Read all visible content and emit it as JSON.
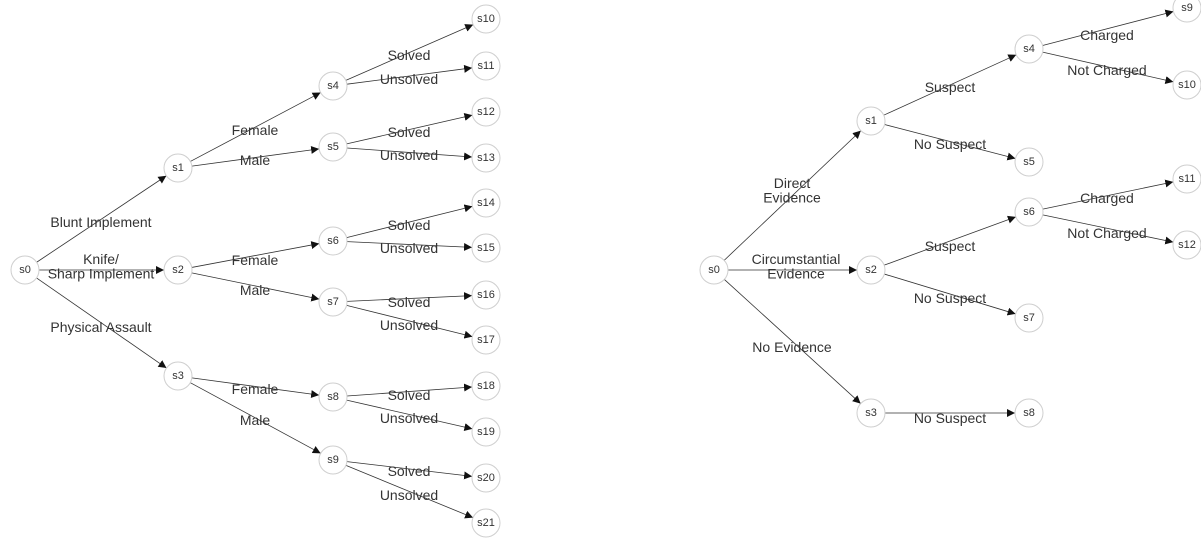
{
  "trees": [
    {
      "id": "left",
      "nodes": [
        "s0",
        "s1",
        "s2",
        "s3",
        "s4",
        "s5",
        "s6",
        "s7",
        "s8",
        "s9",
        "s10",
        "s11",
        "s12",
        "s13",
        "s14",
        "s15",
        "s16",
        "s17",
        "s18",
        "s19",
        "s20",
        "s21"
      ],
      "edges": [
        {
          "from": "s0",
          "to": "s1",
          "label": [
            "Blunt Implement"
          ]
        },
        {
          "from": "s0",
          "to": "s2",
          "label": [
            "Knife/",
            "Sharp Implement"
          ]
        },
        {
          "from": "s0",
          "to": "s3",
          "label": [
            "Physical Assault"
          ]
        },
        {
          "from": "s1",
          "to": "s4",
          "label": [
            "Female"
          ]
        },
        {
          "from": "s1",
          "to": "s5",
          "label": [
            "Male"
          ]
        },
        {
          "from": "s2",
          "to": "s6",
          "label": [
            "Female"
          ]
        },
        {
          "from": "s2",
          "to": "s7",
          "label": [
            "Male"
          ]
        },
        {
          "from": "s3",
          "to": "s8",
          "label": [
            "Female"
          ]
        },
        {
          "from": "s3",
          "to": "s9",
          "label": [
            "Male"
          ]
        },
        {
          "from": "s4",
          "to": "s10",
          "label": [
            "Solved"
          ]
        },
        {
          "from": "s4",
          "to": "s11",
          "label": [
            "Unsolved"
          ]
        },
        {
          "from": "s5",
          "to": "s12",
          "label": [
            "Solved"
          ]
        },
        {
          "from": "s5",
          "to": "s13",
          "label": [
            "Unsolved"
          ]
        },
        {
          "from": "s6",
          "to": "s14",
          "label": [
            "Solved"
          ]
        },
        {
          "from": "s6",
          "to": "s15",
          "label": [
            "Unsolved"
          ]
        },
        {
          "from": "s7",
          "to": "s16",
          "label": [
            "Solved"
          ]
        },
        {
          "from": "s7",
          "to": "s17",
          "label": [
            "Unsolved"
          ]
        },
        {
          "from": "s8",
          "to": "s18",
          "label": [
            "Solved"
          ]
        },
        {
          "from": "s8",
          "to": "s19",
          "label": [
            "Unsolved"
          ]
        },
        {
          "from": "s9",
          "to": "s20",
          "label": [
            "Solved"
          ]
        },
        {
          "from": "s9",
          "to": "s21",
          "label": [
            "Unsolved"
          ]
        }
      ]
    },
    {
      "id": "right",
      "nodes": [
        "s0",
        "s1",
        "s2",
        "s3",
        "s4",
        "s5",
        "s6",
        "s7",
        "s8",
        "s9",
        "s10",
        "s11",
        "s12"
      ],
      "edges": [
        {
          "from": "s0",
          "to": "s1",
          "label": [
            "Direct",
            "Evidence"
          ]
        },
        {
          "from": "s0",
          "to": "s2",
          "label": [
            "Circumstantial",
            "Evidence"
          ]
        },
        {
          "from": "s0",
          "to": "s3",
          "label": [
            "No Evidence"
          ]
        },
        {
          "from": "s1",
          "to": "s4",
          "label": [
            "Suspect"
          ]
        },
        {
          "from": "s1",
          "to": "s5",
          "label": [
            "No Suspect"
          ]
        },
        {
          "from": "s2",
          "to": "s6",
          "label": [
            "Suspect"
          ]
        },
        {
          "from": "s2",
          "to": "s7",
          "label": [
            "No Suspect"
          ]
        },
        {
          "from": "s3",
          "to": "s8",
          "label": [
            "No Suspect"
          ]
        },
        {
          "from": "s4",
          "to": "s9",
          "label": [
            "Charged"
          ]
        },
        {
          "from": "s4",
          "to": "s10",
          "label": [
            "Not Charged"
          ]
        },
        {
          "from": "s6",
          "to": "s11",
          "label": [
            "Charged"
          ]
        },
        {
          "from": "s6",
          "to": "s12",
          "label": [
            "Not Charged"
          ]
        }
      ]
    }
  ]
}
